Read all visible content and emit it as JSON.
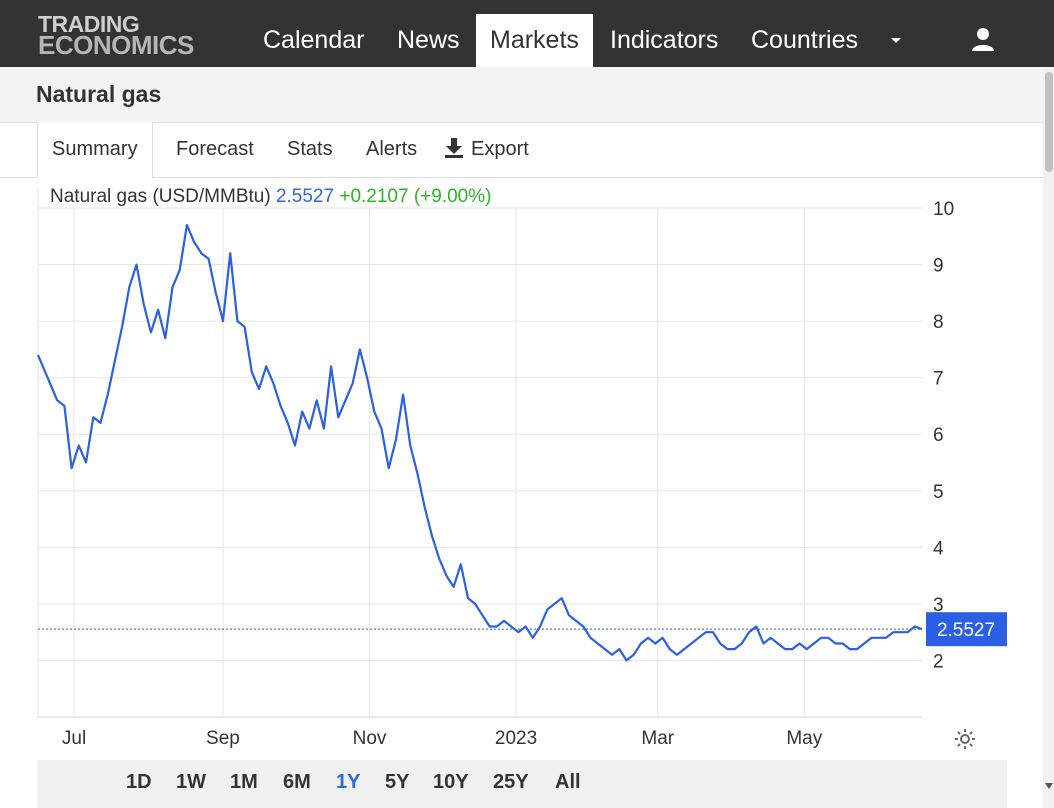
{
  "nav": {
    "logo_line1": "TRADING",
    "logo_line2": "ECONOMICS",
    "items": [
      {
        "label": "Calendar"
      },
      {
        "label": "News"
      },
      {
        "label": "Markets",
        "active": true
      },
      {
        "label": "Indicators"
      },
      {
        "label": "Countries"
      }
    ],
    "user_icon": "user-icon",
    "more_icon": "caret-down-icon"
  },
  "page": {
    "title": "Natural gas"
  },
  "tabs": [
    {
      "label": "Summary",
      "active": true
    },
    {
      "label": "Forecast"
    },
    {
      "label": "Stats"
    },
    {
      "label": "Alerts"
    },
    {
      "label": "Export",
      "icon": "download-icon"
    }
  ],
  "series_header": {
    "name": "Natural gas (USD/MMBtu)",
    "last": "2.5527",
    "change": "+0.2107 (+9.00%)"
  },
  "ranges": [
    {
      "label": "1D"
    },
    {
      "label": "1W"
    },
    {
      "label": "1M"
    },
    {
      "label": "6M"
    },
    {
      "label": "1Y",
      "active": true
    },
    {
      "label": "5Y"
    },
    {
      "label": "10Y"
    },
    {
      "label": "25Y"
    },
    {
      "label": "All"
    }
  ],
  "colors": {
    "line": "#2a5fe6",
    "badge": "#2a5fe6",
    "last_value": "#3268d6",
    "change": "#2db528",
    "active_range": "#2a6ad3"
  },
  "chart_data": {
    "type": "line",
    "title": "Natural gas (USD/MMBtu)",
    "ylim": [
      1,
      10
    ],
    "yticks": [
      2,
      3,
      4,
      5,
      6,
      7,
      8,
      9,
      10
    ],
    "xticks": [
      "Jul",
      "Sep",
      "Nov",
      "2023",
      "Mar",
      "May"
    ],
    "xtick_dates": [
      "2022-07-01",
      "2022-09-01",
      "2022-11-01",
      "2023-01-01",
      "2023-03-01",
      "2023-05-01"
    ],
    "xlim": [
      "2022-06-16",
      "2023-06-19"
    ],
    "last_value": 2.5527,
    "last_label": "2.5527",
    "grid": true,
    "series": [
      {
        "x": [
          "2022-06-16",
          "2022-06-21",
          "2022-06-24",
          "2022-06-27",
          "2022-06-30",
          "2022-07-03",
          "2022-07-06",
          "2022-07-09",
          "2022-07-12",
          "2022-07-15",
          "2022-07-18",
          "2022-07-21",
          "2022-07-24",
          "2022-07-27",
          "2022-07-30",
          "2022-08-02",
          "2022-08-05",
          "2022-08-08",
          "2022-08-11",
          "2022-08-14",
          "2022-08-17",
          "2022-08-20",
          "2022-08-23",
          "2022-08-26",
          "2022-08-29",
          "2022-09-01",
          "2022-09-04",
          "2022-09-07",
          "2022-09-10",
          "2022-09-13",
          "2022-09-16",
          "2022-09-19",
          "2022-09-22",
          "2022-09-25",
          "2022-09-28",
          "2022-10-01",
          "2022-10-04",
          "2022-10-07",
          "2022-10-10",
          "2022-10-13",
          "2022-10-16",
          "2022-10-19",
          "2022-10-22",
          "2022-10-25",
          "2022-10-28",
          "2022-10-31",
          "2022-11-03",
          "2022-11-06",
          "2022-11-09",
          "2022-11-12",
          "2022-11-15",
          "2022-11-18",
          "2022-11-21",
          "2022-11-24",
          "2022-11-27",
          "2022-11-30",
          "2022-12-03",
          "2022-12-06",
          "2022-12-09",
          "2022-12-12",
          "2022-12-15",
          "2022-12-18",
          "2022-12-21",
          "2022-12-24",
          "2022-12-27",
          "2022-12-30",
          "2023-01-02",
          "2023-01-05",
          "2023-01-08",
          "2023-01-11",
          "2023-01-14",
          "2023-01-17",
          "2023-01-20",
          "2023-01-23",
          "2023-01-26",
          "2023-01-29",
          "2023-02-01",
          "2023-02-04",
          "2023-02-07",
          "2023-02-10",
          "2023-02-13",
          "2023-02-16",
          "2023-02-19",
          "2023-02-22",
          "2023-02-25",
          "2023-02-28",
          "2023-03-03",
          "2023-03-06",
          "2023-03-09",
          "2023-03-12",
          "2023-03-15",
          "2023-03-18",
          "2023-03-21",
          "2023-03-24",
          "2023-03-27",
          "2023-03-30",
          "2023-04-02",
          "2023-04-05",
          "2023-04-08",
          "2023-04-11",
          "2023-04-14",
          "2023-04-17",
          "2023-04-20",
          "2023-04-23",
          "2023-04-26",
          "2023-04-29",
          "2023-05-02",
          "2023-05-05",
          "2023-05-08",
          "2023-05-11",
          "2023-05-14",
          "2023-05-17",
          "2023-05-20",
          "2023-05-23",
          "2023-05-26",
          "2023-05-29",
          "2023-06-01",
          "2023-06-04",
          "2023-06-07",
          "2023-06-10",
          "2023-06-13",
          "2023-06-16",
          "2023-06-19"
        ],
        "values": [
          7.4,
          6.9,
          6.6,
          6.5,
          5.4,
          5.8,
          5.5,
          6.3,
          6.2,
          6.7,
          7.3,
          7.9,
          8.6,
          9.0,
          8.3,
          7.8,
          8.2,
          7.7,
          8.6,
          8.9,
          9.7,
          9.4,
          9.2,
          9.1,
          8.5,
          8.0,
          9.2,
          8.0,
          7.9,
          7.1,
          6.8,
          7.2,
          6.9,
          6.5,
          6.2,
          5.8,
          6.4,
          6.1,
          6.6,
          6.1,
          7.2,
          6.3,
          6.6,
          6.9,
          7.5,
          7.0,
          6.4,
          6.1,
          5.4,
          5.9,
          6.7,
          5.8,
          5.3,
          4.7,
          4.2,
          3.8,
          3.5,
          3.3,
          3.7,
          3.1,
          3.0,
          2.8,
          2.6,
          2.6,
          2.7,
          2.6,
          2.5,
          2.6,
          2.4,
          2.6,
          2.9,
          3.0,
          3.1,
          2.8,
          2.7,
          2.6,
          2.4,
          2.3,
          2.2,
          2.1,
          2.2,
          2.0,
          2.1,
          2.3,
          2.4,
          2.3,
          2.4,
          2.2,
          2.1,
          2.2,
          2.3,
          2.4,
          2.5,
          2.5,
          2.3,
          2.2,
          2.2,
          2.3,
          2.5,
          2.6,
          2.3,
          2.4,
          2.3,
          2.2,
          2.2,
          2.3,
          2.2,
          2.3,
          2.4,
          2.4,
          2.3,
          2.3,
          2.2,
          2.2,
          2.3,
          2.4,
          2.4,
          2.4,
          2.5,
          2.5,
          2.5,
          2.6,
          2.5527
        ]
      }
    ]
  }
}
